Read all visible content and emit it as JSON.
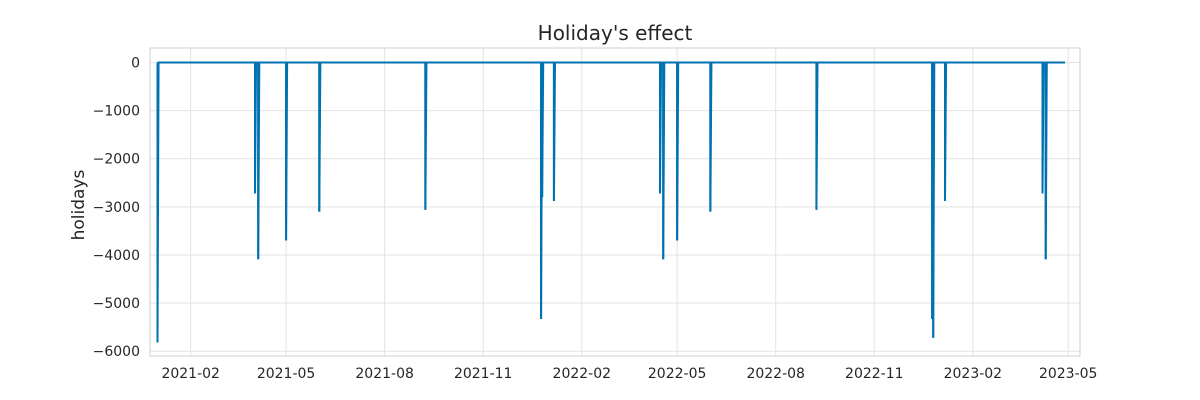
{
  "chart_data": {
    "type": "line",
    "title": "Holiday's effect",
    "xlabel": "",
    "ylabel": "holidays",
    "color": "#0072B2",
    "grid": true,
    "legend": "none",
    "xlim": [
      "2020-12-25",
      "2023-05-12"
    ],
    "ylim": [
      -6100,
      300
    ],
    "x_ticks": [
      "2021-02",
      "2021-05",
      "2021-08",
      "2021-11",
      "2022-02",
      "2022-05",
      "2022-08",
      "2022-11",
      "2023-02",
      "2023-05"
    ],
    "y_ticks": [
      0,
      -1000,
      -2000,
      -3000,
      -4000,
      -5000,
      -6000
    ],
    "y_tick_labels": [
      "0",
      "−1000",
      "−2000",
      "−3000",
      "−4000",
      "−5000",
      "−6000"
    ],
    "series": [
      {
        "start": "2021-01-01",
        "end": "2023-04-28",
        "baseline": 0,
        "events": [
          {
            "x": "2021-01-01",
            "y": -5820
          },
          {
            "x": "2021-04-02",
            "y": -2720
          },
          {
            "x": "2021-04-05",
            "y": -4090
          },
          {
            "x": "2021-05-01",
            "y": -3700
          },
          {
            "x": "2021-06-01",
            "y": -3100
          },
          {
            "x": "2021-09-08",
            "y": -3060
          },
          {
            "x": "2021-12-25",
            "y": -5330
          },
          {
            "x": "2021-12-26",
            "y": -2800
          },
          {
            "x": "2022-01-06",
            "y": -2880
          },
          {
            "x": "2022-04-15",
            "y": -2720
          },
          {
            "x": "2022-04-18",
            "y": -4090
          },
          {
            "x": "2022-05-01",
            "y": -3700
          },
          {
            "x": "2022-06-01",
            "y": -3100
          },
          {
            "x": "2022-09-08",
            "y": -3060
          },
          {
            "x": "2022-12-25",
            "y": -5330
          },
          {
            "x": "2022-12-26",
            "y": -5720
          },
          {
            "x": "2023-01-06",
            "y": -2880
          },
          {
            "x": "2023-04-07",
            "y": -2720
          },
          {
            "x": "2023-04-10",
            "y": -4090
          }
        ]
      }
    ]
  }
}
